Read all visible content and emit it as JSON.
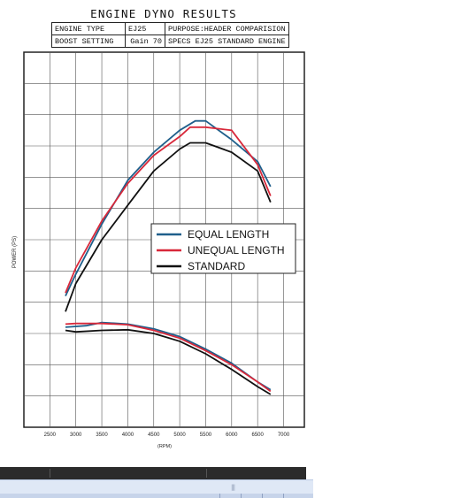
{
  "title": "ENGINE DYNO RESULTS",
  "info": {
    "engine_type_label": "ENGINE TYPE",
    "engine_type_value": "EJ25",
    "purpose": "PURPOSE:HEADER COMPARISION",
    "boost_label": "BOOST SETTING",
    "boost_value": "Gain 70",
    "specs": "SPECS  EJ25 STANDARD ENGINE"
  },
  "chart_data": {
    "type": "line",
    "title": "ENGINE DYNO RESULTS",
    "xlabel": "(RPM)",
    "ylabel": "POWER (PS)",
    "xlim": [
      2000,
      7400
    ],
    "ylim": [
      0,
      12
    ],
    "x_ticks": [
      "2500",
      "3000",
      "3500",
      "4000",
      "4500",
      "5000",
      "5500",
      "6000",
      "6500",
      "7000"
    ],
    "grid": true,
    "legend_position": "center-right",
    "series": [
      {
        "name": "EQUAL LENGTH",
        "color": "#1f5f8b",
        "groups": [
          {
            "x": [
              2800,
              3000,
              3500,
              4000,
              4500,
              5000,
              5300,
              5500,
              6000,
              6500,
              6750
            ],
            "y": [
              4.2,
              4.9,
              6.5,
              7.9,
              8.8,
              9.5,
              9.8,
              9.8,
              9.2,
              8.5,
              7.7
            ]
          },
          {
            "x": [
              2800,
              3200,
              3500,
              4000,
              4500,
              5000,
              5500,
              6000,
              6500,
              6750
            ],
            "y": [
              3.2,
              3.25,
              3.35,
              3.3,
              3.15,
              2.9,
              2.5,
              2.05,
              1.45,
              1.2
            ]
          }
        ]
      },
      {
        "name": "UNEQUAL LENGTH",
        "color": "#d8283a",
        "groups": [
          {
            "x": [
              2800,
              3000,
              3500,
              4000,
              4500,
              5000,
              5200,
              5500,
              6000,
              6500,
              6750
            ],
            "y": [
              4.3,
              5.1,
              6.6,
              7.8,
              8.7,
              9.3,
              9.6,
              9.6,
              9.5,
              8.4,
              7.4
            ]
          },
          {
            "x": [
              2800,
              3000,
              3500,
              4000,
              4500,
              5000,
              5500,
              6000,
              6500,
              6750
            ],
            "y": [
              3.3,
              3.32,
              3.32,
              3.28,
              3.1,
              2.85,
              2.45,
              2.0,
              1.45,
              1.15
            ]
          }
        ]
      },
      {
        "name": "STANDARD",
        "color": "#111111",
        "groups": [
          {
            "x": [
              2800,
              3000,
              3500,
              4000,
              4500,
              5000,
              5200,
              5500,
              6000,
              6500,
              6750
            ],
            "y": [
              3.7,
              4.6,
              6.0,
              7.1,
              8.2,
              8.9,
              9.1,
              9.1,
              8.8,
              8.2,
              7.2
            ]
          },
          {
            "x": [
              2800,
              3000,
              3500,
              4000,
              4500,
              5000,
              5500,
              6000,
              6500,
              6750
            ],
            "y": [
              3.1,
              3.05,
              3.1,
              3.12,
              3.0,
              2.75,
              2.35,
              1.85,
              1.3,
              1.05
            ]
          }
        ]
      }
    ]
  }
}
